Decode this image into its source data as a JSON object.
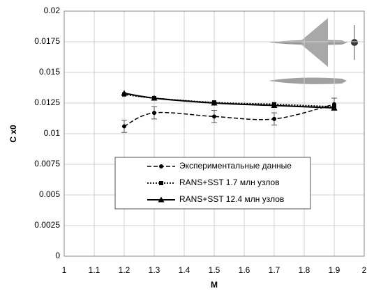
{
  "chart_data": {
    "type": "line",
    "x_label": "M",
    "y_label": "C x0",
    "xlim": [
      1,
      2
    ],
    "xticks": [
      1,
      1.1,
      1.2,
      1.3,
      1.4,
      1.5,
      1.6,
      1.7,
      1.8,
      1.9,
      2
    ],
    "ylim": [
      0,
      0.02
    ],
    "yticks": [
      0,
      0.0025,
      0.005,
      0.0075,
      0.01,
      0.0125,
      0.015,
      0.0175,
      0.02
    ],
    "grid": true,
    "series": [
      {
        "name": "Экспериментальные данные",
        "color": "#000000",
        "dash": "dashed",
        "marker": "circle",
        "x": [
          1.2,
          1.3,
          1.5,
          1.7,
          1.9
        ],
        "values": [
          0.0106,
          0.0117,
          0.0114,
          0.0112,
          0.0124
        ],
        "errors": [
          0.0005,
          0.0005,
          0.0005,
          0.0005,
          0.0005
        ]
      },
      {
        "name": "RANS+SST 1.7 млн узлов",
        "color": "#000000",
        "dash": "dotted",
        "marker": "square",
        "x": [
          1.2,
          1.3,
          1.5,
          1.7,
          1.9
        ],
        "values": [
          0.0132,
          0.0129,
          0.01255,
          0.0124,
          0.0122
        ]
      },
      {
        "name": "RANS+SST 12.4 млн узлов",
        "color": "#000000",
        "dash": "solid",
        "marker": "triangle",
        "x": [
          1.2,
          1.3,
          1.5,
          1.7,
          1.9
        ],
        "values": [
          0.0133,
          0.0129,
          0.0125,
          0.0123,
          0.0121
        ]
      }
    ]
  }
}
